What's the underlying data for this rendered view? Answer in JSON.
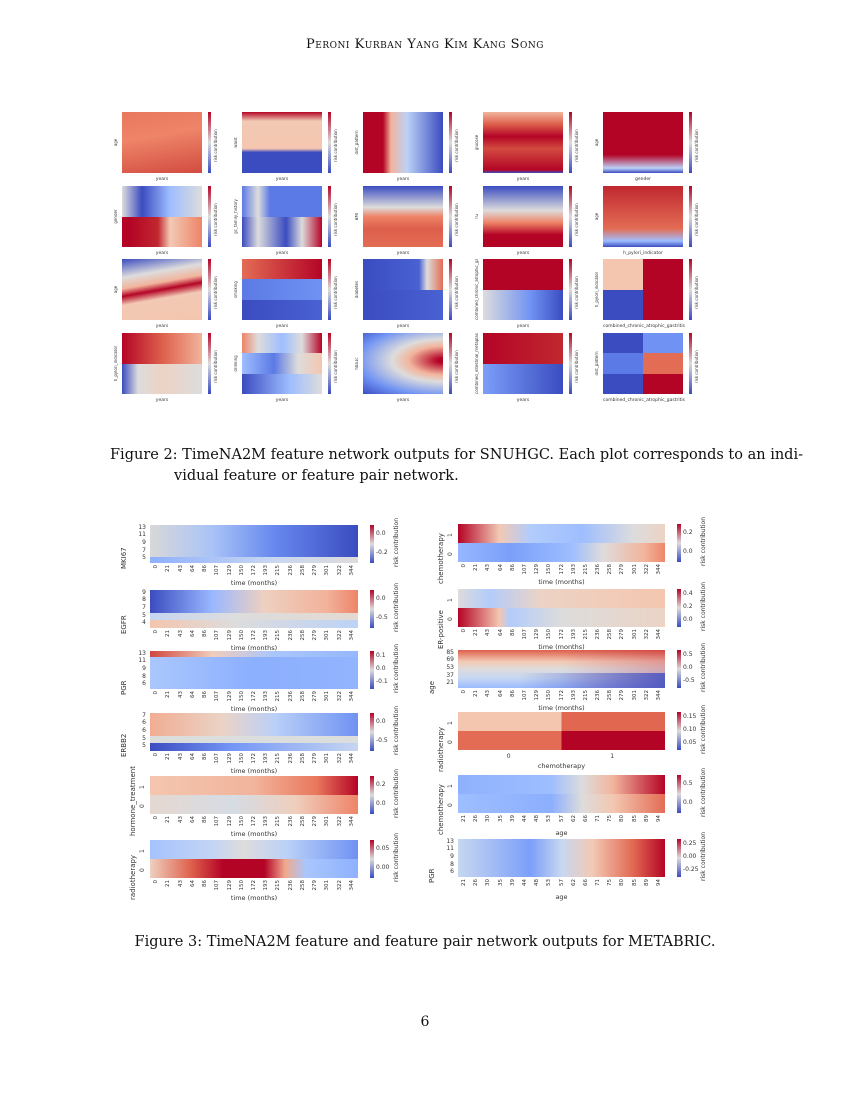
{
  "header": {
    "running_head": "Peroni Kurban Yang Kim Kang Song"
  },
  "figure2": {
    "caption_line1": "Figure 2:  TimeNA2M feature network outputs for SNUHGC. Each plot corresponds to an indi-",
    "caption_line2": "vidual feature or feature pair network.",
    "colorbar_label": "risk contribution",
    "panels": [
      {
        "xlabel": "years",
        "ylabel": "age"
      },
      {
        "xlabel": "years",
        "ylabel": "waist"
      },
      {
        "xlabel": "years",
        "ylabel": "dist_pattern"
      },
      {
        "xlabel": "years",
        "ylabel": "glucose"
      },
      {
        "xlabel": "gender",
        "ylabel": "age"
      },
      {
        "xlabel": "years",
        "ylabel": "gender"
      },
      {
        "xlabel": "years",
        "ylabel": "gc_family_history"
      },
      {
        "xlabel": "years",
        "ylabel": "BMI"
      },
      {
        "xlabel": "years",
        "ylabel": "TG"
      },
      {
        "xlabel": "h_pylori_indicator",
        "ylabel": "age"
      },
      {
        "xlabel": "years",
        "ylabel": "age"
      },
      {
        "xlabel": "years",
        "ylabel": "smoking"
      },
      {
        "xlabel": "years",
        "ylabel": "diabetes"
      },
      {
        "xlabel": "years",
        "ylabel": "combined_chronic_atrophic_gastritis"
      },
      {
        "xlabel": "combined_chronic_atrophic_gastritis",
        "ylabel": "h_pylori_indicator"
      },
      {
        "xlabel": "years",
        "ylabel": "h_pylori_indicator"
      },
      {
        "xlabel": "years",
        "ylabel": "drinking"
      },
      {
        "xlabel": "years",
        "ylabel": "hba1c"
      },
      {
        "xlabel": "years",
        "ylabel": "combined_intestinal_metaplasia"
      },
      {
        "xlabel": "combined_chronic_atrophic_gastritis",
        "ylabel": "dist_pattern"
      }
    ]
  },
  "figure3": {
    "caption": "Figure 3:  TimeNA2M feature and feature pair network outputs for METABRIC.",
    "colorbar_label": "risk contribution",
    "time_ticks": [
      "0",
      "21",
      "43",
      "64",
      "86",
      "107",
      "129",
      "150",
      "172",
      "193",
      "215",
      "236",
      "258",
      "279",
      "301",
      "322",
      "344"
    ],
    "age_ticks": [
      "21",
      "26",
      "30",
      "35",
      "39",
      "44",
      "48",
      "53",
      "57",
      "62",
      "66",
      "71",
      "75",
      "80",
      "85",
      "89",
      "94"
    ],
    "binary_ticks": [
      "0",
      "1"
    ],
    "panels": [
      {
        "id": "mki67",
        "ylabel": "MKI67",
        "yticks": [
          "13",
          "11",
          "9",
          "7",
          "5"
        ],
        "xlabel": "time (months)",
        "xticks": "time",
        "cbar_ticks": [
          "0.0",
          "-0.2"
        ]
      },
      {
        "id": "egfr",
        "ylabel": "EGFR",
        "yticks": [
          "9",
          "8",
          "7",
          "5",
          "4"
        ],
        "xlabel": "time (months)",
        "xticks": "time",
        "cbar_ticks": [
          "0.0",
          "-0.5"
        ]
      },
      {
        "id": "pgr",
        "ylabel": "PGR",
        "yticks": [
          "13",
          "11",
          "9",
          "8",
          "6"
        ],
        "xlabel": "time (months)",
        "xticks": "time",
        "cbar_ticks": [
          "0.1",
          "0.0",
          "-0.1"
        ]
      },
      {
        "id": "erbb2",
        "ylabel": "ERBB2",
        "yticks": [
          "7",
          "6",
          "6",
          "5",
          "5"
        ],
        "xlabel": "time (months)",
        "xticks": "time",
        "cbar_ticks": [
          "0.0",
          "-0.5"
        ]
      },
      {
        "id": "hormone",
        "ylabel": "hormone_treatment",
        "yticks": [
          "1",
          "0"
        ],
        "xlabel": "time (months)",
        "xticks": "time",
        "cbar_ticks": [
          "0.2",
          "0.0"
        ]
      },
      {
        "id": "radio",
        "ylabel": "radiotherapy",
        "yticks": [
          "1",
          "0"
        ],
        "xlabel": "time (months)",
        "xticks": "time",
        "cbar_ticks": [
          "0.05",
          "0.00"
        ]
      },
      {
        "id": "chemo_time",
        "ylabel": "chemotherapy",
        "yticks": [
          "1",
          "0"
        ],
        "xlabel": "time (months)",
        "xticks": "time",
        "cbar_ticks": [
          "0.2",
          "0.0"
        ]
      },
      {
        "id": "er",
        "ylabel": "ER-positive",
        "yticks": [
          "1",
          "0"
        ],
        "xlabel": "time (months)",
        "xticks": "time",
        "cbar_ticks": [
          "0.4",
          "0.2",
          "0.0"
        ]
      },
      {
        "id": "age_time",
        "ylabel": "age",
        "yticks": [
          "85",
          "69",
          "53",
          "37",
          "21"
        ],
        "xlabel": "time (months)",
        "xticks": "time",
        "cbar_ticks": [
          "0.5",
          "0.0",
          "-0.5"
        ]
      },
      {
        "id": "radio_chemo",
        "ylabel": "radiotherapy",
        "yticks": [
          "1",
          "0"
        ],
        "xlabel": "chemotherapy",
        "xticks": "binary",
        "cbar_ticks": [
          "0.15",
          "0.10",
          "0.05"
        ]
      },
      {
        "id": "chemo_age",
        "ylabel": "chemotherapy",
        "yticks": [
          "1",
          "0"
        ],
        "xlabel": "age",
        "xticks": "age",
        "cbar_ticks": [
          "0.5",
          "0.0"
        ]
      },
      {
        "id": "pgr_age",
        "ylabel": "PGR",
        "yticks": [
          "13",
          "11",
          "9",
          "8",
          "6"
        ],
        "xlabel": "age",
        "xticks": "age",
        "cbar_ticks": [
          "0.25",
          "0.00",
          "-0.25"
        ]
      }
    ]
  },
  "colors": {
    "low": "#3b4cc0",
    "mid": "#dddcdc",
    "high": "#b40426"
  },
  "page_number": "6"
}
